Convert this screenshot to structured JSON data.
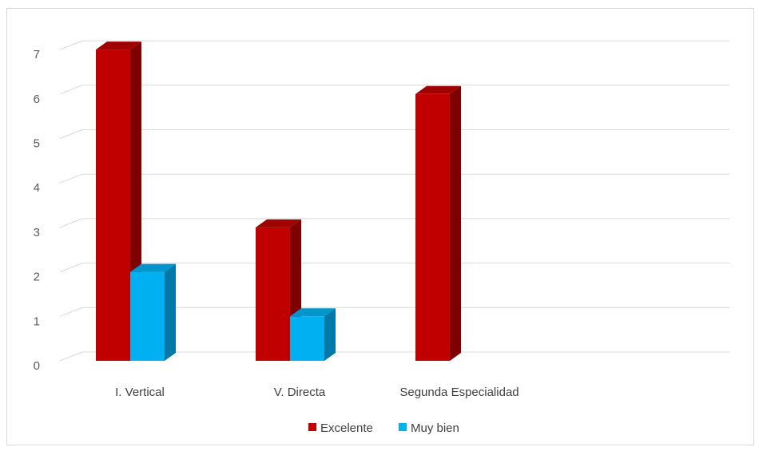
{
  "chart_data": {
    "type": "bar",
    "categories": [
      "I. Vertical",
      "V. Directa",
      "Segunda Especialidad"
    ],
    "series": [
      {
        "name": "Excelente",
        "values": [
          7,
          3,
          6
        ],
        "color": "#c00000",
        "side": "#7f0000",
        "top": "#a00000"
      },
      {
        "name": "Muy bien",
        "values": [
          2,
          1,
          0
        ],
        "color": "#00b0f0",
        "side": "#0078a8",
        "top": "#0096cc"
      }
    ],
    "yticks": [
      "0",
      "1",
      "2",
      "3",
      "4",
      "5",
      "6",
      "7"
    ],
    "ylim": [
      0,
      7
    ],
    "grid": true,
    "legend": "bottom",
    "style": "3d-column"
  }
}
